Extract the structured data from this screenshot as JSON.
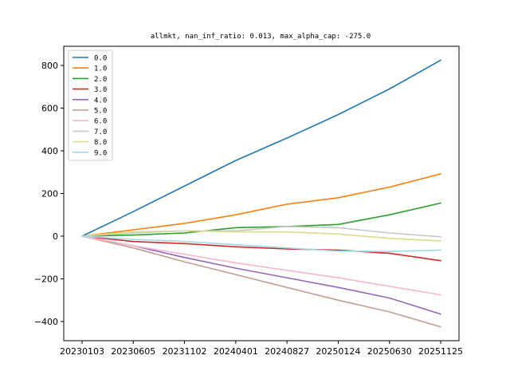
{
  "chart_data": {
    "type": "line",
    "title": "allmkt, nan_inf_ratio: 0.013, max_alpha_cap: -275.0",
    "xlabel": "",
    "ylabel": "",
    "x_ticks": [
      "20230103",
      "20230605",
      "20231102",
      "20240401",
      "20240827",
      "20250124",
      "20250630",
      "20251125"
    ],
    "x": [
      0,
      1,
      2,
      3,
      4,
      5,
      6,
      7
    ],
    "y_ticks": [
      800,
      600,
      400,
      200,
      0,
      -200,
      -400
    ],
    "ylim": [
      -490,
      890
    ],
    "grid": false,
    "legend_position": "top-left",
    "series": [
      {
        "name": "0.0",
        "color": "#1f77b4",
        "values": [
          0,
          115,
          235,
          355,
          460,
          570,
          690,
          825
        ]
      },
      {
        "name": "1.0",
        "color": "#ff7f0e",
        "values": [
          0,
          30,
          60,
          100,
          150,
          180,
          230,
          292
        ]
      },
      {
        "name": "2.0",
        "color": "#2ca02c",
        "values": [
          0,
          5,
          15,
          40,
          45,
          55,
          100,
          155
        ]
      },
      {
        "name": "3.0",
        "color": "#d62728",
        "values": [
          0,
          -25,
          -35,
          -50,
          -60,
          -65,
          -80,
          -115
        ]
      },
      {
        "name": "4.0",
        "color": "#9467bd",
        "values": [
          0,
          -45,
          -100,
          -150,
          -195,
          -240,
          -290,
          -365
        ]
      },
      {
        "name": "5.0",
        "color": "#c49c94",
        "values": [
          0,
          -55,
          -120,
          -180,
          -240,
          -300,
          -355,
          -425
        ]
      },
      {
        "name": "6.0",
        "color": "#f7b6d2",
        "values": [
          0,
          -45,
          -85,
          -125,
          -160,
          -195,
          -235,
          -275
        ]
      },
      {
        "name": "7.0",
        "color": "#c7c7c7",
        "values": [
          0,
          15,
          25,
          25,
          45,
          40,
          15,
          -3
        ]
      },
      {
        "name": "8.0",
        "color": "#dbdb8d",
        "values": [
          0,
          20,
          25,
          20,
          20,
          10,
          -10,
          -22
        ]
      },
      {
        "name": "9.0",
        "color": "#9edae5",
        "values": [
          0,
          -15,
          -25,
          -40,
          -55,
          -70,
          -72,
          -65
        ]
      }
    ]
  }
}
